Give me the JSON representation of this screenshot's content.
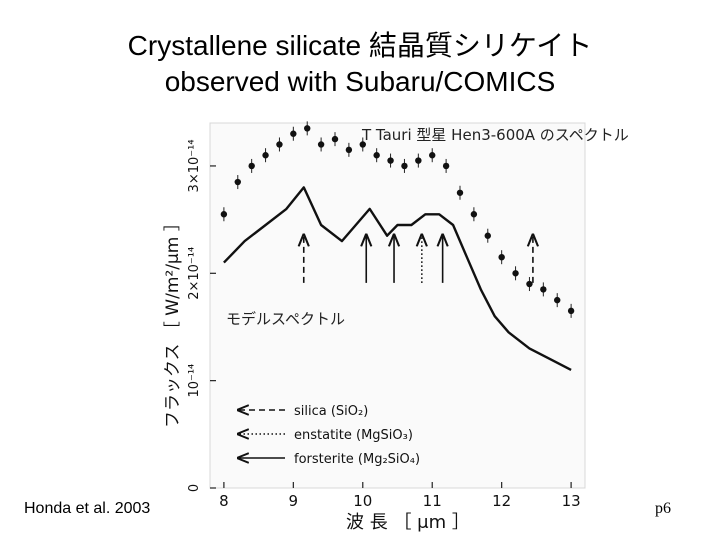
{
  "slide": {
    "title_line1": "Crystallene silicate 結晶質シリケイト",
    "title_line2": "observed with Subaru/COMICS",
    "citation": "Honda et al. 2003",
    "page_number": "p6"
  },
  "chart_data": {
    "type": "line",
    "ylabel": "フラックス ［ W/m²/μm ］",
    "xlabel": "波 長 ［ μm ］",
    "xlim": [
      7.8,
      13.2
    ],
    "ylim": [
      0,
      3.4e-14
    ],
    "xticks": [
      "8",
      "9",
      "10",
      "11",
      "12",
      "13"
    ],
    "yticks": [
      {
        "value": 0,
        "label": "0"
      },
      {
        "value": 1e-14,
        "label": "10⁻¹⁴"
      },
      {
        "value": 2e-14,
        "label": "2×10⁻¹⁴"
      },
      {
        "value": 3e-14,
        "label": "3×10⁻¹⁴"
      }
    ],
    "annotations": {
      "observed": "T Tauri 型星 Hen3-600A のスペクトル",
      "model": "モデルスペクトル"
    },
    "series": [
      {
        "role": "observed",
        "x": [
          8.0,
          8.2,
          8.4,
          8.6,
          8.8,
          9.0,
          9.2,
          9.4,
          9.6,
          9.8,
          10.0,
          10.2,
          10.4,
          10.6,
          10.8,
          11.0,
          11.2,
          11.4,
          11.6,
          11.8,
          12.0,
          12.2,
          12.4,
          12.6,
          12.8,
          13.0
        ],
        "y": [
          2.55e-14,
          2.85e-14,
          3e-14,
          3.1e-14,
          3.2e-14,
          3.3e-14,
          3.35e-14,
          3.2e-14,
          3.25e-14,
          3.15e-14,
          3.2e-14,
          3.1e-14,
          3.05e-14,
          3e-14,
          3.05e-14,
          3.1e-14,
          3e-14,
          2.75e-14,
          2.55e-14,
          2.35e-14,
          2.15e-14,
          2e-14,
          1.9e-14,
          1.85e-14,
          1.75e-14,
          1.65e-14
        ]
      },
      {
        "role": "model",
        "x": [
          8.0,
          8.3,
          8.6,
          8.9,
          9.15,
          9.4,
          9.7,
          9.9,
          10.1,
          10.35,
          10.5,
          10.7,
          10.9,
          11.1,
          11.3,
          11.5,
          11.7,
          11.9,
          12.1,
          12.4,
          12.7,
          13.0
        ],
        "y": [
          2.1e-14,
          2.3e-14,
          2.45e-14,
          2.6e-14,
          2.8e-14,
          2.45e-14,
          2.3e-14,
          2.45e-14,
          2.6e-14,
          2.35e-14,
          2.45e-14,
          2.45e-14,
          2.55e-14,
          2.55e-14,
          2.45e-14,
          2.15e-14,
          1.85e-14,
          1.6e-14,
          1.45e-14,
          1.3e-14,
          1.2e-14,
          1.1e-14
        ]
      }
    ],
    "legend": {
      "placement": "bottom-left",
      "entries": [
        {
          "label": "silica (SiO₂)",
          "style": "dashed"
        },
        {
          "label": "enstatite (MgSiO₃)",
          "style": "dotted"
        },
        {
          "label": "forsterite (Mg₂SiO₄)",
          "style": "solid"
        }
      ]
    },
    "feature_markers": [
      {
        "x": 9.15,
        "species": "silica"
      },
      {
        "x": 10.05,
        "species": "forsterite"
      },
      {
        "x": 10.45,
        "species": "forsterite"
      },
      {
        "x": 10.85,
        "species": "enstatite"
      },
      {
        "x": 11.15,
        "species": "forsterite"
      },
      {
        "x": 12.45,
        "species": "silica"
      }
    ]
  }
}
